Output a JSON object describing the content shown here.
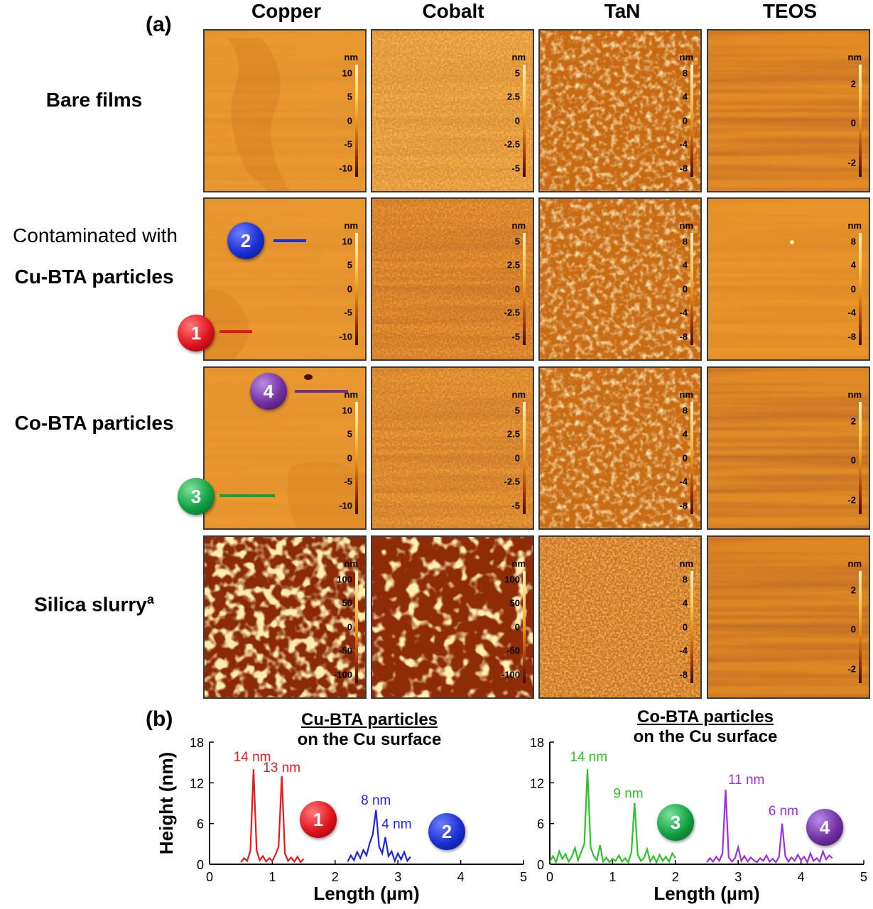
{
  "panel_a_label": "(a)",
  "panel_b_label": "(b)",
  "columns": [
    "Copper",
    "Cobalt",
    "TaN",
    "TEOS"
  ],
  "rows": {
    "bare": "Bare films",
    "contaminated_prefix": "Contaminated with",
    "cu_bta": "Cu-BTA particles",
    "co_bta": "Co-BTA particles",
    "silica_main": "Silica slurry",
    "silica_sup": "a"
  },
  "scale_unit": "nm",
  "scale_ticks": {
    "copper_bare": [
      "10",
      "5",
      "0",
      "-5",
      "-10"
    ],
    "cobalt_bare": [
      "5",
      "2.5",
      "0",
      "-2.5",
      "-5"
    ],
    "tan_bare": [
      "8",
      "4",
      "0",
      "-4",
      "-8"
    ],
    "teos_bare": [
      "2",
      "0",
      "-2"
    ],
    "copper_cu": [
      "10",
      "5",
      "0",
      "-5",
      "-10"
    ],
    "cobalt_cu": [
      "5",
      "2.5",
      "0",
      "-2.5",
      "-5"
    ],
    "tan_cu": [
      "8",
      "4",
      "0",
      "-4",
      "-8"
    ],
    "teos_cu": [
      "8",
      "4",
      "0",
      "-4",
      "-8"
    ],
    "copper_co": [
      "10",
      "5",
      "0",
      "-5",
      "-10"
    ],
    "cobalt_co": [
      "5",
      "2.5",
      "0",
      "-2.5",
      "-5"
    ],
    "tan_co": [
      "8",
      "4",
      "0",
      "-4",
      "-8"
    ],
    "teos_co": [
      "2",
      "0",
      "-2"
    ],
    "copper_si": [
      "100",
      "50",
      "0",
      "-50",
      "-100"
    ],
    "cobalt_si": [
      "100",
      "50",
      "0",
      "-50",
      "-100"
    ],
    "tan_si": [
      "8",
      "4",
      "0",
      "-4",
      "-8"
    ],
    "teos_si": [
      "2",
      "0",
      "-2"
    ]
  },
  "markers": [
    {
      "num": "1",
      "color": "#e0141c"
    },
    {
      "num": "2",
      "color": "#1a2fd0"
    },
    {
      "num": "3",
      "color": "#12a043"
    },
    {
      "num": "4",
      "color": "#7030a0"
    }
  ],
  "chart_titles": {
    "left_line1": "Cu-BTA particles",
    "left_line2": "on the Cu surface",
    "right_line1": "Co-BTA particles",
    "right_line2": "on the Cu surface"
  },
  "chart_data": [
    {
      "type": "line",
      "title": "Cu-BTA particles on the Cu surface",
      "xlabel": "Length (µm)",
      "ylabel": "Height (nm)",
      "xlim": [
        0,
        5
      ],
      "ylim": [
        0,
        18
      ],
      "xticks": [
        "0",
        "1",
        "2",
        "3",
        "4",
        "5"
      ],
      "yticks": [
        "0",
        "6",
        "12",
        "18"
      ],
      "series": [
        {
          "name": "1",
          "color": "#e41a1c",
          "x": [
            0.5,
            0.55,
            0.6,
            0.65,
            0.7,
            0.75,
            0.8,
            0.85,
            0.9,
            0.95,
            1.0,
            1.05,
            1.1,
            1.15,
            1.2,
            1.25,
            1.3,
            1.35,
            1.4,
            1.45,
            1.5
          ],
          "y": [
            0.3,
            0.9,
            0.5,
            2.0,
            14,
            2.0,
            0.6,
            1.2,
            0.4,
            0.9,
            0.5,
            1.4,
            2.6,
            13,
            1.6,
            0.5,
            1.0,
            0.4,
            1.1,
            0.3,
            0.8
          ]
        },
        {
          "name": "2",
          "color": "#1f24e0",
          "x": [
            2.2,
            2.25,
            2.3,
            2.35,
            2.4,
            2.45,
            2.5,
            2.55,
            2.6,
            2.65,
            2.7,
            2.75,
            2.8,
            2.85,
            2.9,
            2.95,
            3.0,
            3.05,
            3.1,
            3.15,
            3.2
          ],
          "y": [
            0.4,
            1.3,
            0.6,
            1.8,
            0.9,
            2.1,
            1.3,
            3.1,
            4.4,
            8.0,
            2.6,
            1.6,
            4.0,
            1.2,
            1.9,
            0.5,
            1.6,
            0.7,
            1.8,
            0.5,
            1.1
          ]
        }
      ],
      "annotations": [
        {
          "text": "14 nm",
          "color": "#e41a1c"
        },
        {
          "text": "13 nm",
          "color": "#e41a1c"
        },
        {
          "text": "8 nm",
          "color": "#1f24e0"
        },
        {
          "text": "4 nm",
          "color": "#1f24e0"
        }
      ]
    },
    {
      "type": "line",
      "title": "Co-BTA particles on the Cu surface",
      "xlabel": "Length (µm)",
      "ylabel": "Height (nm)",
      "xlim": [
        0,
        5
      ],
      "ylim": [
        0,
        18
      ],
      "xticks": [
        "0",
        "1",
        "2",
        "3",
        "4",
        "5"
      ],
      "yticks": [
        "0",
        "6",
        "12",
        "18"
      ],
      "series": [
        {
          "name": "3",
          "color": "#2fc12a",
          "x": [
            0.0,
            0.05,
            0.1,
            0.15,
            0.2,
            0.25,
            0.3,
            0.35,
            0.4,
            0.45,
            0.5,
            0.55,
            0.6,
            0.65,
            0.7,
            0.75,
            0.8,
            0.85,
            0.9,
            0.95,
            1.0,
            1.05,
            1.1,
            1.15,
            1.2,
            1.25,
            1.3,
            1.35,
            1.4,
            1.45,
            1.5,
            1.55,
            1.6,
            1.65,
            1.7,
            1.75,
            1.8,
            1.85,
            1.9,
            1.95,
            2.0
          ],
          "y": [
            0.4,
            1.2,
            0.3,
            1.9,
            0.8,
            1.5,
            0.4,
            1.1,
            2.4,
            0.6,
            1.8,
            3.0,
            14,
            2.5,
            1.2,
            0.6,
            2.8,
            0.4,
            1.0,
            0.3,
            0.8,
            0.5,
            1.3,
            0.4,
            0.9,
            0.3,
            1.8,
            9,
            1.4,
            0.5,
            0.9,
            2.2,
            0.4,
            1.2,
            0.3,
            1.4,
            0.5,
            1.1,
            0.4,
            1.6,
            0.9
          ]
        },
        {
          "name": "4",
          "color": "#9b30e0",
          "x": [
            2.5,
            2.55,
            2.6,
            2.65,
            2.7,
            2.75,
            2.8,
            2.85,
            2.9,
            2.95,
            3.0,
            3.05,
            3.1,
            3.15,
            3.2,
            3.25,
            3.3,
            3.35,
            3.4,
            3.45,
            3.5,
            3.55,
            3.6,
            3.65,
            3.7,
            3.75,
            3.8,
            3.85,
            3.9,
            3.95,
            4.0,
            4.05,
            4.1,
            4.15,
            4.2,
            4.25,
            4.3,
            4.35,
            4.4,
            4.45,
            4.5
          ],
          "y": [
            0.3,
            0.9,
            0.4,
            1.1,
            0.5,
            1.6,
            11,
            1.0,
            0.4,
            0.9,
            2.5,
            0.5,
            1.2,
            0.4,
            1.0,
            0.6,
            0.3,
            0.9,
            0.5,
            1.3,
            0.4,
            0.8,
            0.3,
            1.1,
            6,
            1.2,
            0.4,
            1.0,
            0.5,
            1.4,
            0.6,
            1.1,
            0.3,
            1.6,
            0.5,
            0.9,
            0.4,
            1.9,
            0.7,
            1.3,
            0.9
          ]
        }
      ],
      "annotations": [
        {
          "text": "14 nm",
          "color": "#2fc12a"
        },
        {
          "text": "9 nm",
          "color": "#2fc12a"
        },
        {
          "text": "11 nm",
          "color": "#9b30e0"
        },
        {
          "text": "6 nm",
          "color": "#9b30e0"
        }
      ]
    }
  ]
}
